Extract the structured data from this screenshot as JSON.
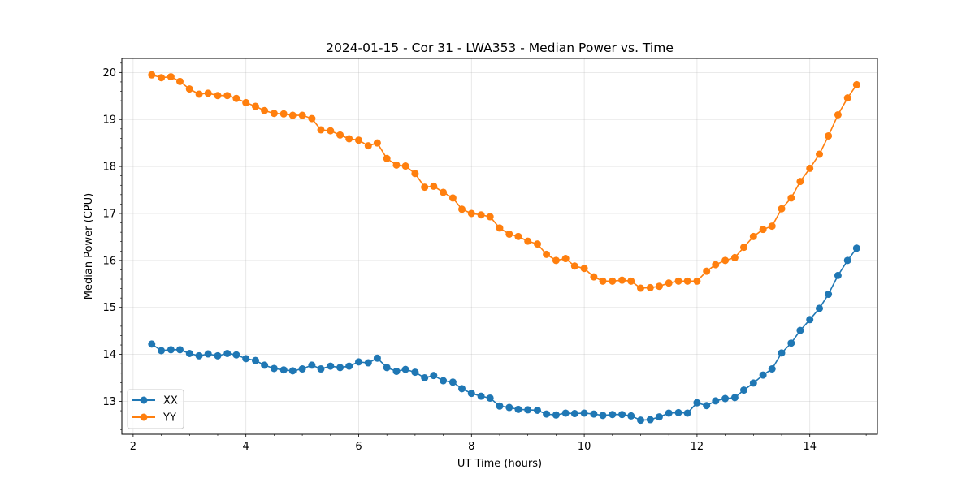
{
  "chart_data": {
    "type": "line",
    "title": "2024-01-15 - Cor 31 - LWA353 - Median Power vs. Time",
    "xlabel": "UT Time (hours)",
    "ylabel": "Median Power (CPU)",
    "xlim": [
      1.8,
      15.2
    ],
    "ylim": [
      12.3,
      20.3
    ],
    "xticks": [
      2,
      4,
      6,
      8,
      10,
      12,
      14
    ],
    "xtick_labels": [
      "2",
      "4",
      "6",
      "8",
      "10",
      "12",
      "14"
    ],
    "yticks": [
      13,
      14,
      15,
      16,
      17,
      18,
      19,
      20
    ],
    "ytick_labels": [
      "13",
      "14",
      "15",
      "16",
      "17",
      "18",
      "19",
      "20"
    ],
    "grid": true,
    "legend_position": "lower-left",
    "x": [
      2.33,
      2.5,
      2.67,
      2.83,
      3.0,
      3.17,
      3.33,
      3.5,
      3.67,
      3.83,
      4.0,
      4.17,
      4.33,
      4.5,
      4.67,
      4.83,
      5.0,
      5.17,
      5.33,
      5.5,
      5.67,
      5.83,
      6.0,
      6.17,
      6.33,
      6.5,
      6.67,
      6.83,
      7.0,
      7.17,
      7.33,
      7.5,
      7.67,
      7.83,
      8.0,
      8.17,
      8.33,
      8.5,
      8.67,
      8.83,
      9.0,
      9.17,
      9.33,
      9.5,
      9.67,
      9.83,
      10.0,
      10.17,
      10.33,
      10.5,
      10.67,
      10.83,
      11.0,
      11.17,
      11.33,
      11.5,
      11.67,
      11.83,
      12.0,
      12.17,
      12.33,
      12.5,
      12.67,
      12.83,
      13.0,
      13.17,
      13.33,
      13.5,
      13.67,
      13.83,
      14.0,
      14.17,
      14.33,
      14.5,
      14.67,
      14.83
    ],
    "series": [
      {
        "name": "XX",
        "color": "#1f77b4",
        "values": [
          14.22,
          14.08,
          14.1,
          14.1,
          14.02,
          13.97,
          14.01,
          13.97,
          14.02,
          13.99,
          13.91,
          13.87,
          13.77,
          13.7,
          13.67,
          13.65,
          13.69,
          13.77,
          13.69,
          13.75,
          13.72,
          13.75,
          13.84,
          13.82,
          13.92,
          13.72,
          13.64,
          13.68,
          13.62,
          13.5,
          13.55,
          13.44,
          13.41,
          13.27,
          13.17,
          13.11,
          13.07,
          12.9,
          12.87,
          12.83,
          12.82,
          12.81,
          12.73,
          12.71,
          12.75,
          12.74,
          12.75,
          12.73,
          12.7,
          12.72,
          12.72,
          12.69,
          12.6,
          12.61,
          12.67,
          12.75,
          12.76,
          12.75,
          12.97,
          12.91,
          13.01,
          13.06,
          13.08,
          13.24,
          13.39,
          13.56,
          13.69,
          14.03,
          14.24,
          14.51,
          14.74,
          14.98,
          15.28,
          15.68,
          16.0,
          16.26
        ]
      },
      {
        "name": "YY",
        "color": "#ff7f0e",
        "values": [
          19.95,
          19.89,
          19.91,
          19.81,
          19.65,
          19.54,
          19.56,
          19.51,
          19.51,
          19.45,
          19.36,
          19.28,
          19.19,
          19.13,
          19.12,
          19.09,
          19.09,
          19.02,
          18.78,
          18.76,
          18.67,
          18.59,
          18.56,
          18.44,
          18.5,
          18.17,
          18.03,
          18.01,
          17.85,
          17.56,
          17.58,
          17.45,
          17.33,
          17.09,
          17.0,
          16.97,
          16.93,
          16.69,
          16.56,
          16.51,
          16.41,
          16.35,
          16.13,
          16.0,
          16.04,
          15.88,
          15.83,
          15.65,
          15.56,
          15.56,
          15.58,
          15.56,
          15.41,
          15.42,
          15.45,
          15.52,
          15.56,
          15.56,
          15.56,
          15.77,
          15.91,
          16.0,
          16.06,
          16.28,
          16.51,
          16.66,
          16.73,
          17.1,
          17.33,
          17.68,
          17.96,
          18.26,
          18.65,
          19.1,
          19.46,
          19.74
        ]
      }
    ]
  }
}
